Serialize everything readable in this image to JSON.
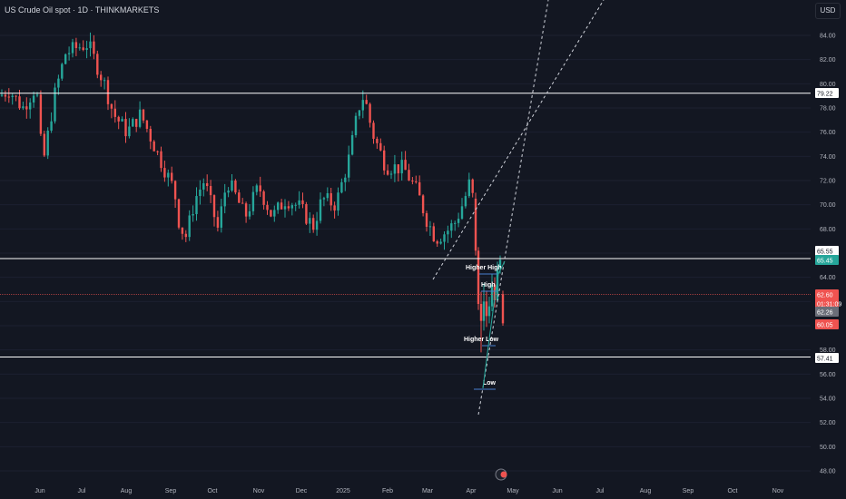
{
  "header": {
    "title": "US Crude Oil spot · 1D · THINKMARKETS",
    "currency": "USD"
  },
  "colors": {
    "background": "#131722",
    "up": "#26a69a",
    "down": "#ef5350",
    "axis_text": "#b2b5be",
    "level_line": "#ffffff"
  },
  "chart_data": {
    "type": "candlestick",
    "y_axis_ticks": [
      84,
      82,
      80,
      78,
      76,
      74,
      72,
      70,
      68,
      66,
      64,
      62,
      60,
      58,
      56,
      54,
      52,
      50,
      48
    ],
    "y_tick_labels": [
      "84.00",
      "82.00",
      "80.00",
      "78.00",
      "76.00",
      "74.00",
      "72.00",
      "70.00",
      "68.00",
      "66.00",
      "64.00",
      "62.00",
      "60.00",
      "58.00",
      "56.00",
      "54.00",
      "52.00",
      "50.00",
      "48.00"
    ],
    "x_axis_labels": [
      "Jun",
      "Jul",
      "Aug",
      "Sep",
      "Oct",
      "Nov",
      "Dec",
      "2025",
      "Feb",
      "Mar",
      "Apr",
      "May",
      "Jun",
      "Jul",
      "Aug",
      "Sep",
      "Oct",
      "Nov"
    ],
    "horizontal_levels": [
      79.22,
      65.55,
      57.41
    ],
    "price_labels": [
      {
        "text": "79.22",
        "value": 79.22,
        "style": "level"
      },
      {
        "text": "65.55",
        "value": 65.55,
        "style": "level"
      },
      {
        "text": "65.45",
        "value": 65.45,
        "style": "up"
      },
      {
        "text": "62.60",
        "value": 62.6,
        "style": "down"
      },
      {
        "text": "01:31:09",
        "value": 62.0,
        "style": "down"
      },
      {
        "text": "62.26",
        "value": 62.26,
        "style": "gray"
      },
      {
        "text": "60.05",
        "value": 60.05,
        "style": "down"
      },
      {
        "text": "57.41",
        "value": 57.41,
        "style": "level"
      }
    ],
    "current_price": 62.6,
    "annotations": [
      {
        "text": "Higher High",
        "x": "Apr",
        "y": 65.0
      },
      {
        "text": "High",
        "x": "Apr",
        "y": 63.5
      },
      {
        "text": "Higher Low",
        "x": "Apr",
        "y": 58.5
      },
      {
        "text": "Low",
        "x": "Apr",
        "y": 54.8
      }
    ],
    "ylim": [
      47,
      86
    ]
  }
}
